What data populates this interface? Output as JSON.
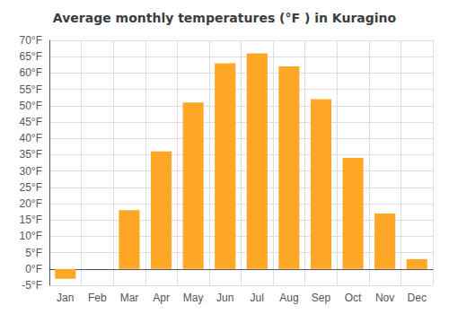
{
  "chart_data": {
    "type": "bar",
    "title": "Average monthly temperatures (°F ) in Kuragino",
    "categories": [
      "Jan",
      "Feb",
      "Mar",
      "Apr",
      "May",
      "Jun",
      "Jul",
      "Aug",
      "Sep",
      "Oct",
      "Nov",
      "Dec"
    ],
    "values": [
      -3,
      0,
      18,
      36,
      51,
      63,
      66,
      62,
      52,
      34,
      17,
      3
    ],
    "color": "#FFA726",
    "ylim": [
      -5,
      70
    ],
    "yticks": [
      {
        "value": -5,
        "label": "-5°F"
      },
      {
        "value": 0,
        "label": "0°F"
      },
      {
        "value": 5,
        "label": "5°F"
      },
      {
        "value": 10,
        "label": "10°F"
      },
      {
        "value": 15,
        "label": "15°F"
      },
      {
        "value": 20,
        "label": "20°F"
      },
      {
        "value": 25,
        "label": "25°F"
      },
      {
        "value": 30,
        "label": "30°F"
      },
      {
        "value": 35,
        "label": "35°F"
      },
      {
        "value": 40,
        "label": "40°F"
      },
      {
        "value": 45,
        "label": "45°F"
      },
      {
        "value": 50,
        "label": "50°F"
      },
      {
        "value": 55,
        "label": "55°F"
      },
      {
        "value": 60,
        "label": "60°F"
      },
      {
        "value": 65,
        "label": "65°F"
      },
      {
        "value": 70,
        "label": "70°F"
      }
    ],
    "grid": true
  }
}
